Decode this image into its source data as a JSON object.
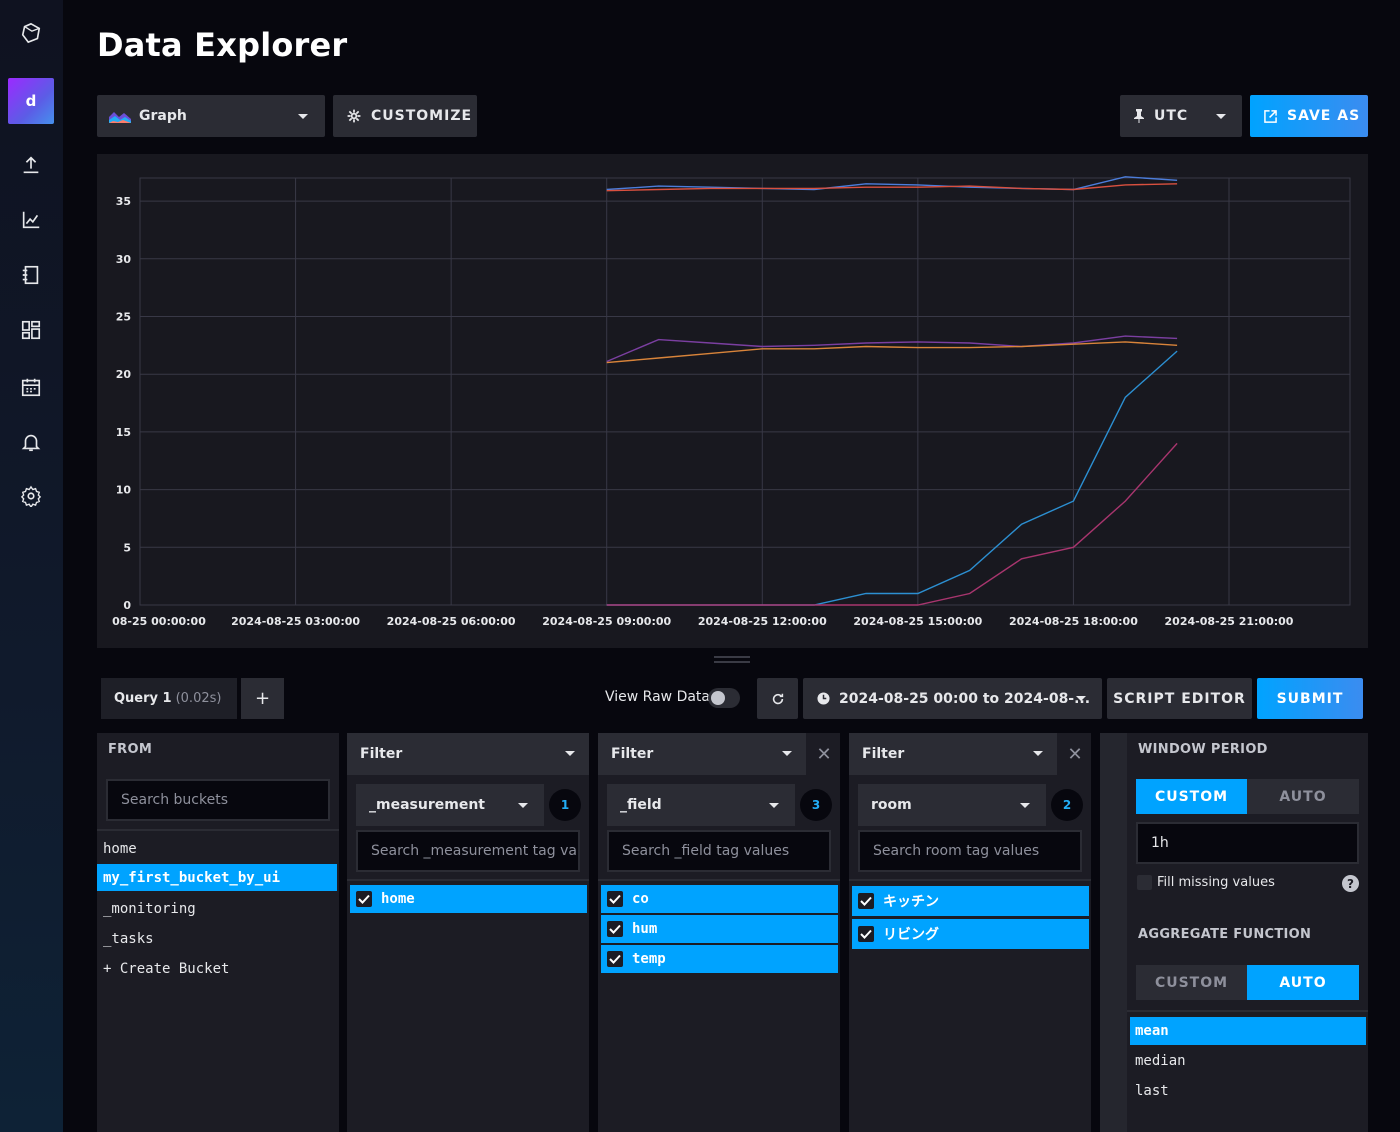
{
  "page": {
    "title": "Data Explorer"
  },
  "toolbar": {
    "view_type": "Graph",
    "customize_label": "CUSTOMIZE",
    "timezone": "UTC",
    "save_as_label": "SAVE AS"
  },
  "sidebar": {
    "avatar_letter": "d",
    "items": [
      {
        "name": "logo-icon"
      },
      {
        "name": "avatar"
      },
      {
        "name": "upload-icon"
      },
      {
        "name": "data-explorer-icon"
      },
      {
        "name": "notebooks-icon"
      },
      {
        "name": "dashboards-icon"
      },
      {
        "name": "tasks-icon"
      },
      {
        "name": "alerts-icon"
      },
      {
        "name": "settings-icon"
      }
    ]
  },
  "chart_data": {
    "type": "line",
    "title": "",
    "xlabel": "",
    "ylabel": "",
    "x_tick_labels": [
      "08-25 00:00:00",
      "2024-08-25 03:00:00",
      "2024-08-25 06:00:00",
      "2024-08-25 09:00:00",
      "2024-08-25 12:00:00",
      "2024-08-25 15:00:00",
      "2024-08-25 18:00:00",
      "2024-08-25 21:00:00"
    ],
    "y_ticks": [
      0,
      5,
      10,
      15,
      20,
      25,
      30,
      35
    ],
    "xlim": [
      "2024-08-25 00:00:00",
      "2024-08-25 23:20:00"
    ],
    "ylim": [
      0,
      37
    ],
    "grid": true,
    "x": [
      "2024-08-25 09:00:00",
      "2024-08-25 10:00:00",
      "2024-08-25 11:00:00",
      "2024-08-25 12:00:00",
      "2024-08-25 13:00:00",
      "2024-08-25 14:00:00",
      "2024-08-25 15:00:00",
      "2024-08-25 16:00:00",
      "2024-08-25 17:00:00",
      "2024-08-25 18:00:00",
      "2024-08-25 19:00:00",
      "2024-08-25 20:00:00"
    ],
    "series": [
      {
        "color": "#4c7ddb",
        "values": [
          36.0,
          36.3,
          36.2,
          36.1,
          36.0,
          36.5,
          36.4,
          36.2,
          36.1,
          36.0,
          37.1,
          36.8
        ]
      },
      {
        "color": "#d9503f",
        "values": [
          35.9,
          36.0,
          36.1,
          36.1,
          36.1,
          36.2,
          36.2,
          36.3,
          36.1,
          36.0,
          36.4,
          36.5
        ]
      },
      {
        "color": "#7b3fa1",
        "values": [
          21.1,
          23.0,
          22.7,
          22.4,
          22.5,
          22.7,
          22.8,
          22.7,
          22.4,
          22.7,
          23.3,
          23.1
        ]
      },
      {
        "color": "#d9843a",
        "values": [
          21.0,
          21.4,
          21.8,
          22.2,
          22.2,
          22.4,
          22.3,
          22.3,
          22.4,
          22.6,
          22.8,
          22.5
        ]
      },
      {
        "color": "#2c8fd1",
        "values": [
          0.0,
          0.0,
          0.0,
          0.0,
          0.0,
          1.0,
          1.0,
          3.0,
          7.0,
          9.0,
          18.0,
          22.0
        ]
      },
      {
        "color": "#a8356e",
        "values": [
          0.0,
          0.0,
          0.0,
          0.0,
          0.0,
          0.0,
          0.0,
          1.0,
          4.0,
          5.0,
          9.0,
          14.0
        ]
      }
    ]
  },
  "query": {
    "tab_label": "Query 1",
    "tab_time": "(0.02s)",
    "add_label": "+",
    "raw_data_label": "View Raw Data",
    "time_range": "2024-08-25 00:00 to 2024-08-...",
    "script_editor_label": "SCRIPT EDITOR",
    "submit_label": "SUBMIT"
  },
  "from": {
    "label": "FROM",
    "search_placeholder": "Search buckets",
    "buckets": [
      "home",
      "my_first_bucket_by_ui",
      "_monitoring",
      "_tasks",
      "+ Create Bucket"
    ]
  },
  "filters": [
    {
      "header": "Filter",
      "key": "_measurement",
      "count": "1",
      "search_placeholder": "Search _measurement tag va",
      "values": [
        "home"
      ]
    },
    {
      "header": "Filter",
      "key": "_field",
      "count": "3",
      "search_placeholder": "Search _field tag values",
      "values": [
        "co",
        "hum",
        "temp"
      ]
    },
    {
      "header": "Filter",
      "key": "room",
      "count": "2",
      "search_placeholder": "Search room tag values",
      "values": [
        "キッチン",
        "リビング"
      ]
    }
  ],
  "window_period": {
    "label": "WINDOW PERIOD",
    "custom_label": "CUSTOM",
    "auto_label": "AUTO",
    "value": "1h",
    "fill_missing_label": "Fill missing values",
    "help_label": "?"
  },
  "aggregate": {
    "label": "AGGREGATE FUNCTION",
    "custom_label": "CUSTOM",
    "auto_label": "AUTO",
    "functions": [
      "mean",
      "median",
      "last"
    ]
  },
  "colors": {
    "accent": "#00a3ff",
    "panel": "#18181f",
    "button": "#2b2c34",
    "save_gradient": "#3b8cf0"
  }
}
